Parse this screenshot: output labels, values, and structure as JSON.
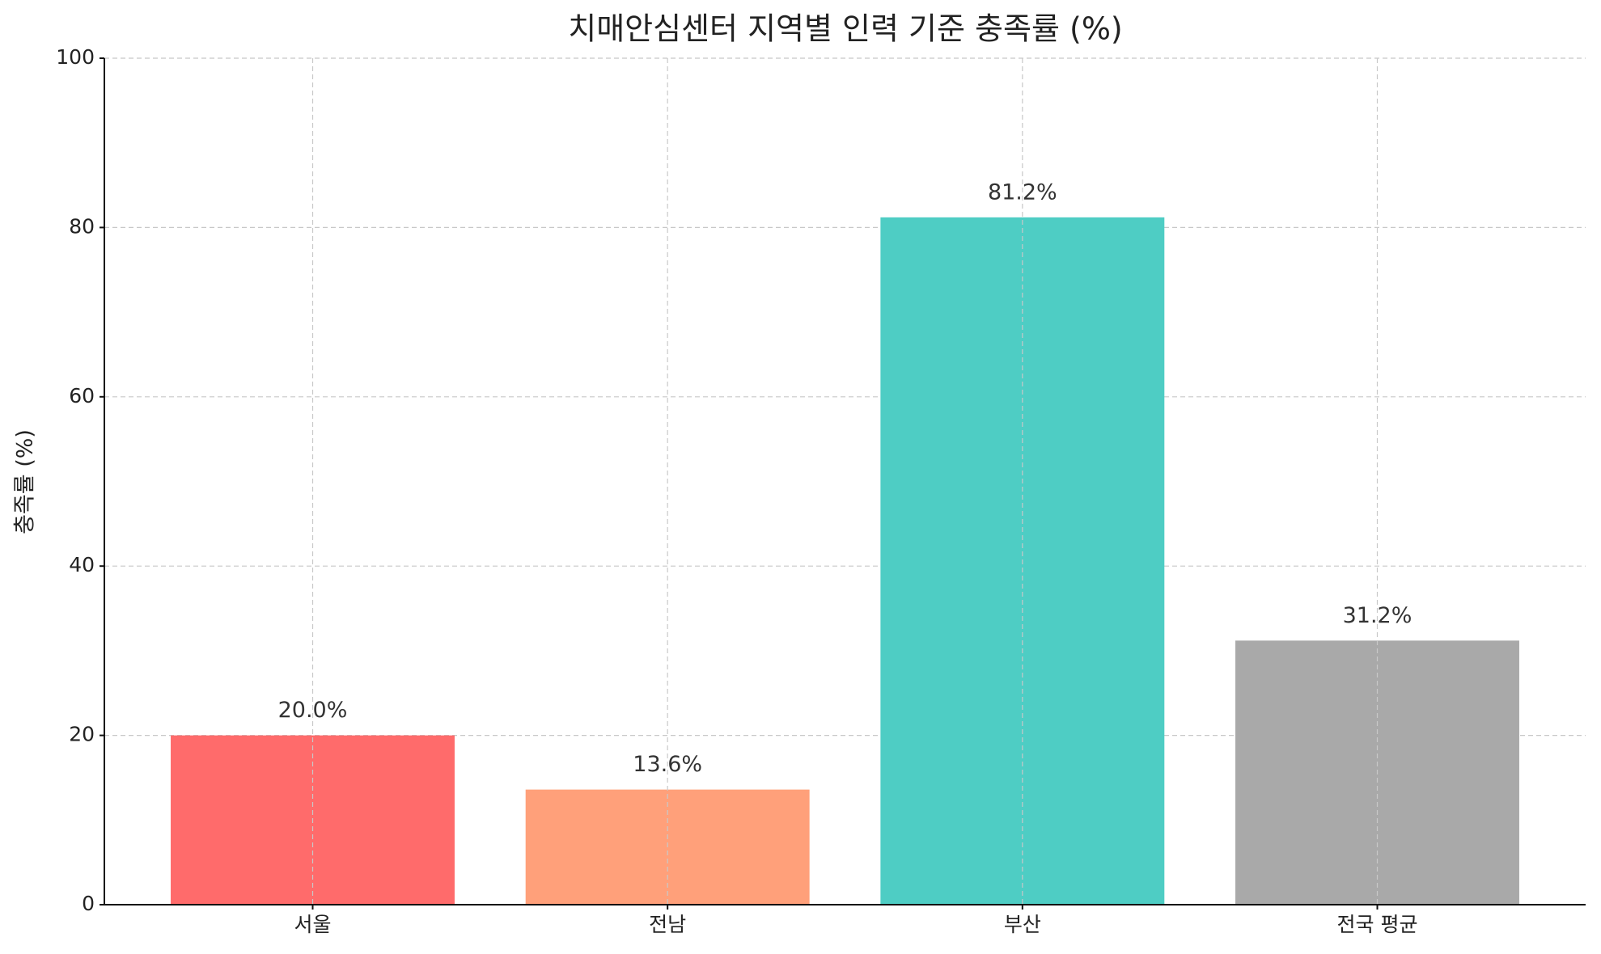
{
  "chart_data": {
    "type": "bar",
    "title": "치매안심센터 지역별 인력 기준 충족률 (%)",
    "y_label": "충족률 (%)",
    "categories": [
      "서울",
      "전남",
      "부산",
      "전국 평균"
    ],
    "values": [
      20.0,
      13.6,
      81.2,
      31.2
    ],
    "value_labels": [
      "20.0%",
      "13.6%",
      "81.2%",
      "31.2%"
    ],
    "colors": [
      "#ff6b6b",
      "#ffa07a",
      "#4ecdc4",
      "#a9a9a9"
    ],
    "ylim": [
      0,
      100
    ],
    "yticks": [
      0,
      20,
      40,
      60,
      80,
      100
    ],
    "grid": true
  }
}
